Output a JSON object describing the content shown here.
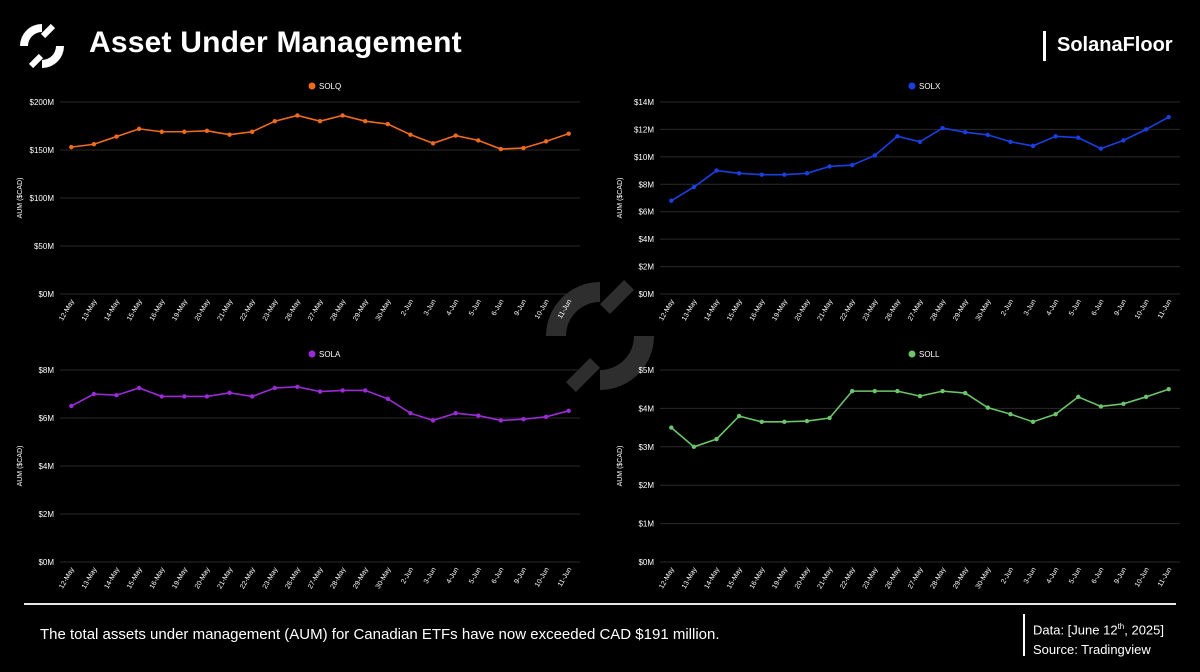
{
  "header": {
    "title": "Asset Under Management",
    "brand": "SolanaFloor"
  },
  "footer": {
    "text": "The total assets under management (AUM) for Canadian ETFs have now exceeded CAD $191 million.",
    "data_prefix": "Data: [June 12",
    "data_sup": "th",
    "data_suffix": ", 2025]",
    "source": "Source: Tradingview"
  },
  "chart_data": [
    {
      "type": "line",
      "series": [
        {
          "name": "SOLQ",
          "color": "#f06a1e",
          "values": [
            153,
            156,
            164,
            172,
            169,
            169,
            170,
            166,
            169,
            180,
            186,
            180,
            186,
            180,
            177,
            166,
            157,
            165,
            160,
            151,
            152,
            159,
            167
          ]
        }
      ],
      "categories": [
        "12-May",
        "13-May",
        "14-May",
        "15-May",
        "16-May",
        "19-May",
        "20-May",
        "21-May",
        "22-May",
        "23-May",
        "26-May",
        "27-May",
        "28-May",
        "29-May",
        "30-May",
        "2-Jun",
        "3-Jun",
        "4-Jun",
        "5-Jun",
        "6-Jun",
        "9-Jun",
        "10-Jun",
        "11-Jun"
      ],
      "ylabel": "AUM ($CAD)",
      "ylim": [
        0,
        200
      ],
      "yticks": [
        "$0M",
        "$50M",
        "$100M",
        "$150M",
        "$200M"
      ],
      "grid": true,
      "legend_position": "top-center"
    },
    {
      "type": "line",
      "series": [
        {
          "name": "SOLX",
          "color": "#1a3fe0",
          "values": [
            6.8,
            7.8,
            9.0,
            8.8,
            8.7,
            8.7,
            8.8,
            9.3,
            9.4,
            10.1,
            11.5,
            11.1,
            12.1,
            11.8,
            11.6,
            11.1,
            10.8,
            11.5,
            11.4,
            10.6,
            11.2,
            12.0,
            12.9
          ]
        }
      ],
      "categories": [
        "12-May",
        "13-May",
        "14-May",
        "15-May",
        "16-May",
        "19-May",
        "20-May",
        "21-May",
        "22-May",
        "23-May",
        "26-May",
        "27-May",
        "28-May",
        "29-May",
        "30-May",
        "2-Jun",
        "3-Jun",
        "4-Jun",
        "5-Jun",
        "6-Jun",
        "9-Jun",
        "10-Jun",
        "11-Jun"
      ],
      "ylabel": "AUM ($CAD)",
      "ylim": [
        0,
        14
      ],
      "yticks": [
        "$0M",
        "$2M",
        "$4M",
        "$6M",
        "$8M",
        "$10M",
        "$12M",
        "$14M"
      ],
      "grid": true,
      "legend_position": "top-center"
    },
    {
      "type": "line",
      "series": [
        {
          "name": "SOLA",
          "color": "#9b2bd6",
          "values": [
            6.5,
            7.0,
            6.95,
            7.25,
            6.9,
            6.9,
            6.9,
            7.05,
            6.9,
            7.25,
            7.3,
            7.1,
            7.15,
            7.15,
            6.8,
            6.2,
            5.9,
            6.2,
            6.1,
            5.9,
            5.95,
            6.05,
            6.3
          ]
        }
      ],
      "categories": [
        "12-May",
        "13-May",
        "14-May",
        "15-May",
        "16-May",
        "19-May",
        "20-May",
        "21-May",
        "22-May",
        "23-May",
        "26-May",
        "27-May",
        "28-May",
        "29-May",
        "30-May",
        "2-Jun",
        "3-Jun",
        "4-Jun",
        "5-Jun",
        "6-Jun",
        "9-Jun",
        "10-Jun",
        "11-Jun"
      ],
      "ylabel": "AUM ($CAD)",
      "ylim": [
        0,
        8
      ],
      "yticks": [
        "$0M",
        "$2M",
        "$4M",
        "$6M",
        "$8M"
      ],
      "grid": true,
      "legend_position": "top-center"
    },
    {
      "type": "line",
      "series": [
        {
          "name": "SOLL",
          "color": "#6cc56a",
          "values": [
            3.5,
            3.0,
            3.2,
            3.8,
            3.65,
            3.65,
            3.67,
            3.75,
            4.45,
            4.45,
            4.45,
            4.32,
            4.45,
            4.4,
            4.02,
            3.85,
            3.65,
            3.85,
            4.3,
            4.05,
            4.12,
            4.3,
            4.5
          ]
        }
      ],
      "categories": [
        "12-May",
        "13-May",
        "14-May",
        "15-May",
        "16-May",
        "19-May",
        "20-May",
        "21-May",
        "22-May",
        "23-May",
        "26-May",
        "27-May",
        "28-May",
        "29-May",
        "30-May",
        "2-Jun",
        "3-Jun",
        "4-Jun",
        "5-Jun",
        "6-Jun",
        "9-Jun",
        "10-Jun",
        "11-Jun"
      ],
      "ylabel": "AUM ($CAD)",
      "ylim": [
        0,
        5
      ],
      "yticks": [
        "$0M",
        "$1M",
        "$2M",
        "$3M",
        "$4M",
        "$5M"
      ],
      "grid": true,
      "legend_position": "top-center"
    }
  ]
}
